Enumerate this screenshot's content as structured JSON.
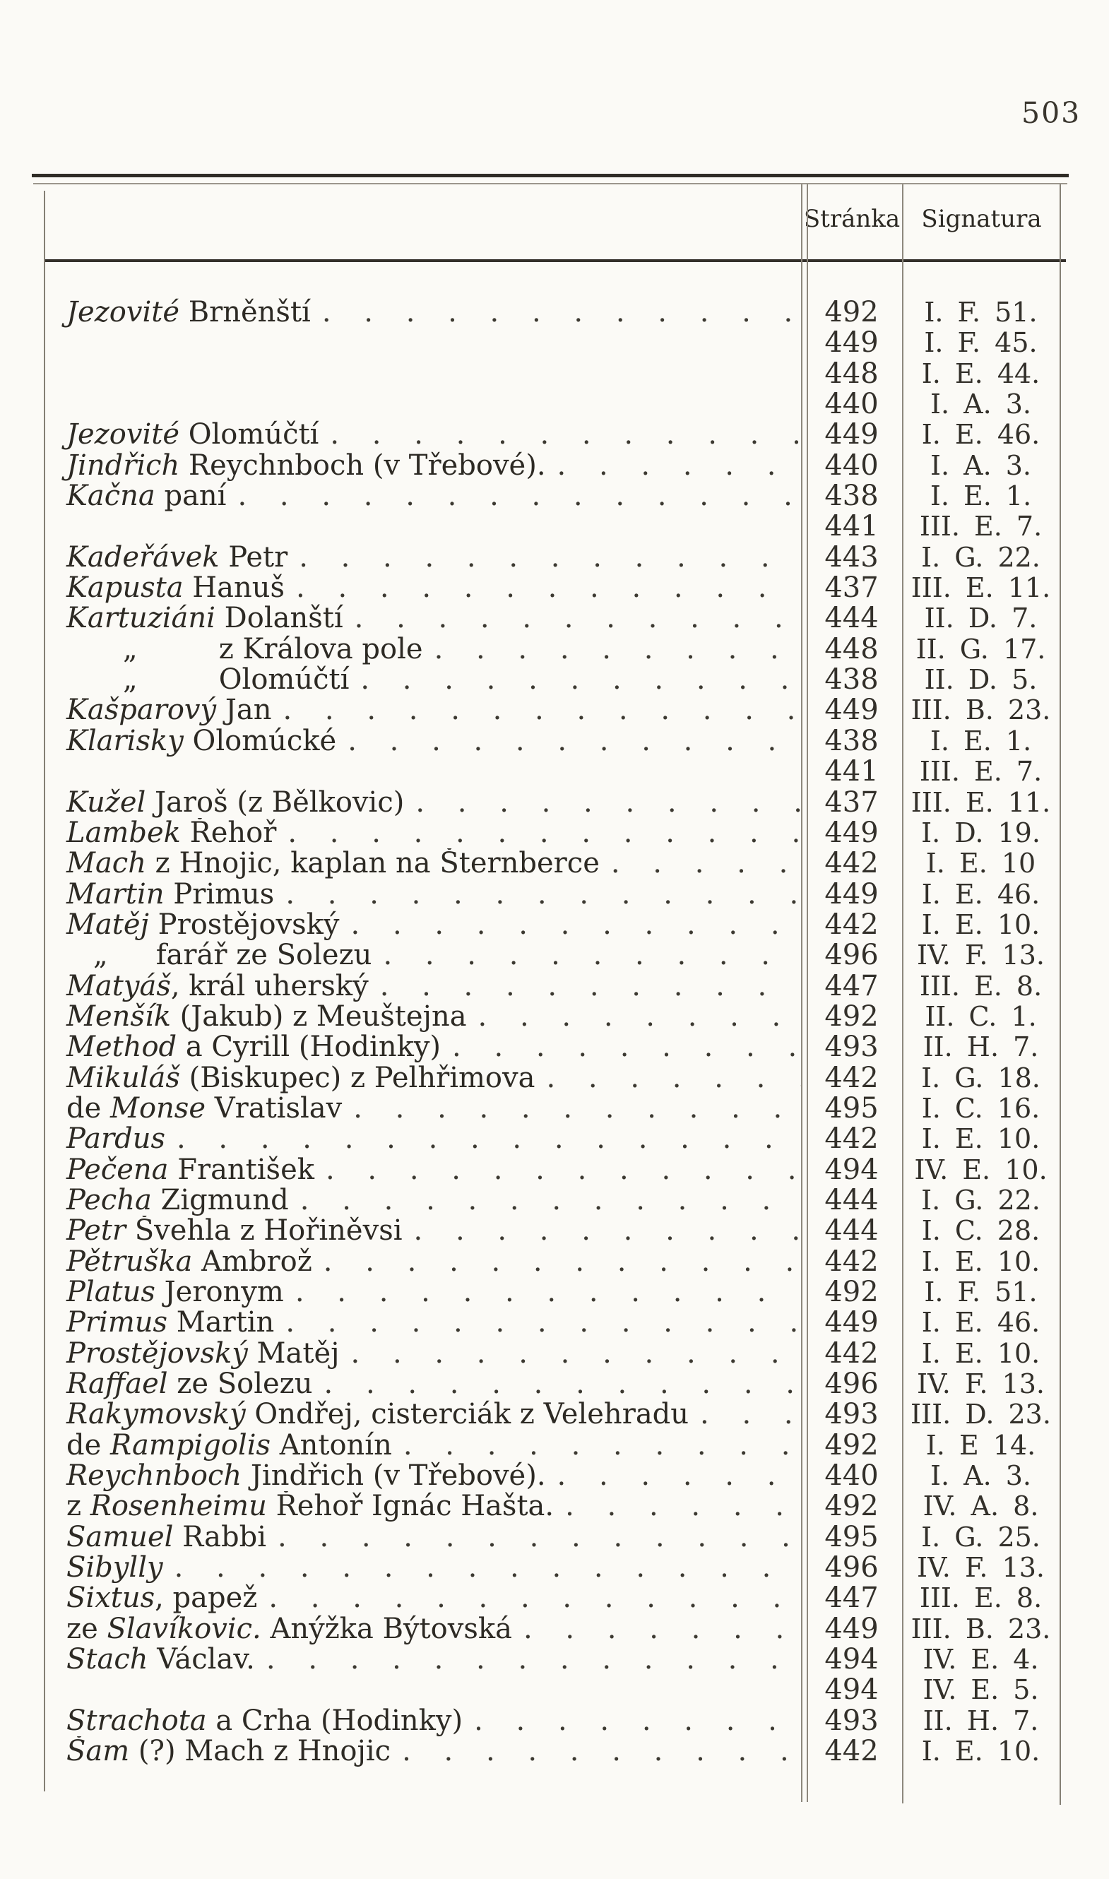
{
  "page": {
    "number": "503"
  },
  "table": {
    "header": {
      "col_page": "Stránka",
      "col_sig": "Signatura"
    },
    "ditto": "„",
    "leader": ". . . . . . . . . . . . . . . . . . . . . . . . . . . . . .",
    "rows": [
      {
        "it": "Jezovité",
        "rest": " Brněnští",
        "page": "492",
        "sig": "I. F. 51."
      },
      {
        "page": "449",
        "sig": "I. F. 45."
      },
      {
        "page": "448",
        "sig": "I. E. 44."
      },
      {
        "page": "440",
        "sig": "I. A. 3."
      },
      {
        "it": "Jezovité",
        "rest": " Olomúčtí",
        "page": "449",
        "sig": "I. E. 46."
      },
      {
        "it": "Jindřich",
        "rest": " Reychnboch (v Třebové).",
        "page": "440",
        "sig": "I. A. 3."
      },
      {
        "it": "Kačna",
        "rest": " paní",
        "page": "438",
        "sig": "I. E. 1."
      },
      {
        "page": "441",
        "sig": "III. E. 7."
      },
      {
        "it": "Kadeřávek",
        "rest": " Petr",
        "page": "443",
        "sig": "I. G. 22."
      },
      {
        "it": "Kapusta",
        "rest": " Hanuš",
        "page": "437",
        "sig": "III. E. 11."
      },
      {
        "it": "Kartuziáni",
        "rest": " Dolanští",
        "page": "444",
        "sig": "II. D. 7."
      },
      {
        "quote": 1,
        "rest": "z Králova pole",
        "page": "448",
        "sig": "II. G. 17."
      },
      {
        "quote": 1,
        "rest": "Olomúčtí",
        "page": "438",
        "sig": "II. D. 5."
      },
      {
        "it": "Kašparový",
        "rest": " Jan",
        "page": "449",
        "sig": "III. B. 23."
      },
      {
        "it": "Klarisky",
        "rest": " Olomúcké",
        "page": "438",
        "sig": "I. E. 1."
      },
      {
        "page": "441",
        "sig": "III. E. 7."
      },
      {
        "it": "Kužel",
        "rest": " Jaroš (z Bělkovic)",
        "page": "437",
        "sig": "III. E. 11."
      },
      {
        "it": "Lambek",
        "rest": " Řehoř",
        "page": "449",
        "sig": "I. D. 19."
      },
      {
        "it": "Mach",
        "rest": " z Hnojic, kaplan na Šternberce",
        "page": "442",
        "sig": "I. E. 10"
      },
      {
        "it": "Martin",
        "rest": " Primus",
        "page": "449",
        "sig": "I. E. 46."
      },
      {
        "it": "Matěj",
        "rest": " Prostějovský",
        "page": "442",
        "sig": "I. E. 10."
      },
      {
        "quote": 2,
        "rest": "farář ze Solezu",
        "page": "496",
        "sig": "IV. F. 13."
      },
      {
        "it": "Matyáš",
        "rest": ", král uherský",
        "page": "447",
        "sig": "III. E. 8."
      },
      {
        "it": "Menšík",
        "rest": " (Jakub) z Meuštejna",
        "page": "492",
        "sig": "II. C. 1."
      },
      {
        "it": "Method",
        "rest": " a Cyrill (Hodinky)",
        "page": "493",
        "sig": "II. H. 7."
      },
      {
        "it": "Mikuláš",
        "rest": " (Biskupec) z Pelhřimova",
        "page": "442",
        "sig": "I. G. 18."
      },
      {
        "pre": "de ",
        "it": "Monse",
        "rest": " Vratislav",
        "page": "495",
        "sig": "I. C. 16."
      },
      {
        "it": "Pardus",
        "page": "442",
        "sig": "I. E. 10."
      },
      {
        "it": "Pečena",
        "rest": " František",
        "page": "494",
        "sig": "IV. E. 10."
      },
      {
        "it": "Pecha",
        "rest": " Zigmund",
        "page": "444",
        "sig": "I. G. 22."
      },
      {
        "it": "Petr",
        "rest": " Švehla z Hořiněvsi",
        "page": "444",
        "sig": "I. C. 28."
      },
      {
        "it": "Pětruška",
        "rest": " Ambrož",
        "page": "442",
        "sig": "I. E. 10."
      },
      {
        "it": "Platus",
        "rest": " Jeronym",
        "page": "492",
        "sig": "I. F. 51."
      },
      {
        "it": "Primus",
        "rest": " Martin",
        "page": "449",
        "sig": "I. E. 46."
      },
      {
        "it": "Prostějovský",
        "rest": " Matěj",
        "page": "442",
        "sig": "I. E. 10."
      },
      {
        "it": "Raffael",
        "rest": " ze Solezu",
        "page": "496",
        "sig": "IV. F. 13."
      },
      {
        "it": "Rakymovský",
        "rest": " Ondřej, cisterciák z Velehradu",
        "page": "493",
        "sig": "III. D. 23."
      },
      {
        "pre": "de ",
        "it": "Rampigolis",
        "rest": " Antonín",
        "page": "492",
        "sig": "I. E 14."
      },
      {
        "it": "Reychnboch",
        "rest": " Jindřich (v Třebové).",
        "page": "440",
        "sig": "I. A. 3."
      },
      {
        "pre": "z ",
        "it": "Rosenheimu",
        "rest": " Řehoř Ignác Hašta.",
        "page": "492",
        "sig": "IV. A. 8."
      },
      {
        "it": "Samuel",
        "rest": " Rabbi",
        "page": "495",
        "sig": "I. G. 25."
      },
      {
        "it": "Sibylly",
        "page": "496",
        "sig": "IV. F. 13."
      },
      {
        "it": "Sixtus",
        "rest": ", papež",
        "page": "447",
        "sig": "III. E. 8."
      },
      {
        "pre": "ze ",
        "it": "Slavíkovic.",
        "rest": " Anýžka Býtovská",
        "page": "449",
        "sig": "III. B. 23."
      },
      {
        "it": "Stach",
        "rest": " Václav.",
        "page": "494",
        "sig": "IV. E. 4."
      },
      {
        "page": "494",
        "sig": "IV. E. 5."
      },
      {
        "it": "Strachota",
        "rest": " a Crha (Hodinky)",
        "page": "493",
        "sig": "II. H. 7."
      },
      {
        "it": "Šam",
        "rest": " (?) Mach z Hnojic",
        "page": "442",
        "sig": "I. E. 10."
      }
    ]
  }
}
